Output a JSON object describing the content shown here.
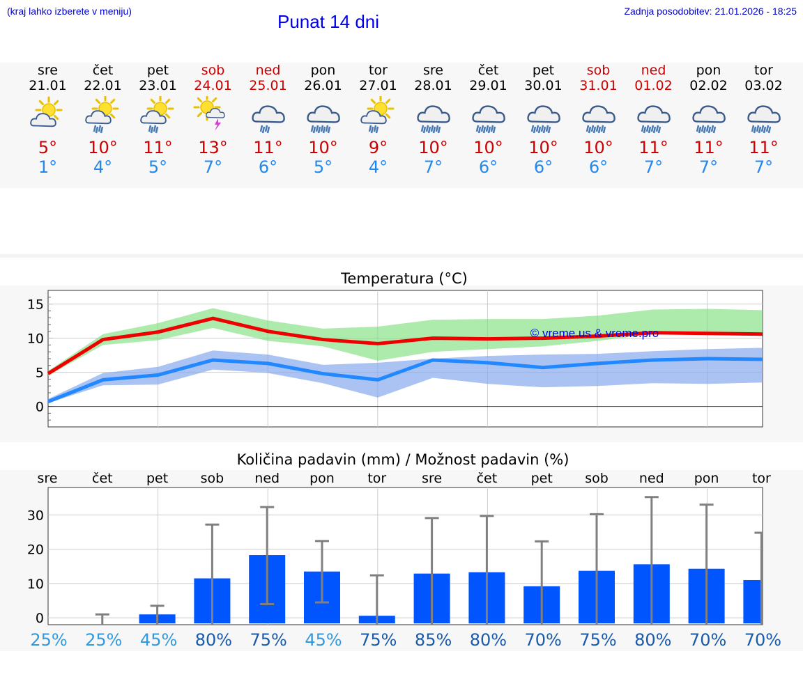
{
  "header": {
    "hint": "(kraj lahko izberete v meniju)",
    "title": "Punat 14 dni",
    "updated": "Zadnja posodobitev: 21.01.2026 - 18:25"
  },
  "days": [
    {
      "name": "sre",
      "date": "21.01",
      "weekend": false,
      "icon": "sun-cloud-icon",
      "tmax": "5°",
      "tmin": "1°"
    },
    {
      "name": "čet",
      "date": "22.01",
      "weekend": false,
      "icon": "sun-cloud-rain-icon",
      "tmax": "10°",
      "tmin": "4°"
    },
    {
      "name": "pet",
      "date": "23.01",
      "weekend": false,
      "icon": "sun-cloud-rain-icon",
      "tmax": "11°",
      "tmin": "5°"
    },
    {
      "name": "sob",
      "date": "24.01",
      "weekend": true,
      "icon": "sun-cloud-thunder-icon",
      "tmax": "13°",
      "tmin": "7°"
    },
    {
      "name": "ned",
      "date": "25.01",
      "weekend": true,
      "icon": "cloud-rain-icon",
      "tmax": "11°",
      "tmin": "6°"
    },
    {
      "name": "pon",
      "date": "26.01",
      "weekend": false,
      "icon": "cloud-heavy-rain-icon",
      "tmax": "10°",
      "tmin": "5°"
    },
    {
      "name": "tor",
      "date": "27.01",
      "weekend": false,
      "icon": "sun-cloud-rain-icon",
      "tmax": "9°",
      "tmin": "4°"
    },
    {
      "name": "sre",
      "date": "28.01",
      "weekend": false,
      "icon": "cloud-heavy-rain-icon",
      "tmax": "10°",
      "tmin": "7°"
    },
    {
      "name": "čet",
      "date": "29.01",
      "weekend": false,
      "icon": "cloud-heavy-rain-icon",
      "tmax": "10°",
      "tmin": "6°"
    },
    {
      "name": "pet",
      "date": "30.01",
      "weekend": false,
      "icon": "cloud-heavy-rain-icon",
      "tmax": "10°",
      "tmin": "6°"
    },
    {
      "name": "sob",
      "date": "31.01",
      "weekend": true,
      "icon": "cloud-heavy-rain-icon",
      "tmax": "10°",
      "tmin": "6°"
    },
    {
      "name": "ned",
      "date": "01.02",
      "weekend": true,
      "icon": "cloud-heavy-rain-icon",
      "tmax": "11°",
      "tmin": "7°"
    },
    {
      "name": "pon",
      "date": "02.02",
      "weekend": false,
      "icon": "cloud-heavy-rain-icon",
      "tmax": "11°",
      "tmin": "7°"
    },
    {
      "name": "tor",
      "date": "03.02",
      "weekend": false,
      "icon": "cloud-heavy-rain-icon",
      "tmax": "11°",
      "tmin": "7°"
    }
  ],
  "colors": {
    "max_line": "#ee0000",
    "max_band": "#77dd77",
    "min_line": "#2288ff",
    "min_band": "#88aaee",
    "bar": "#0055ff",
    "whisker": "#808080",
    "weekend": "#cc0000",
    "min_text": "#2288ee"
  },
  "chart_data": [
    {
      "type": "line",
      "title": "Temperatura (°C)",
      "watermark": "© vreme.us & vreme.pro",
      "ylim": [
        -3,
        17
      ],
      "yticks": [
        0,
        5,
        10,
        15
      ],
      "tick_labels": [
        "0",
        "5",
        "10",
        "15"
      ],
      "series": [
        {
          "name": "max",
          "values": [
            4.8,
            9.8,
            10.9,
            12.9,
            11.0,
            9.8,
            9.2,
            10.0,
            9.9,
            10.0,
            10.3,
            10.8,
            10.7,
            10.6
          ],
          "band_low": [
            4.5,
            9.0,
            9.7,
            11.5,
            9.6,
            8.8,
            6.7,
            8.0,
            8.4,
            8.8,
            9.6,
            10.6,
            10.6,
            10.7
          ],
          "band_high": [
            5.2,
            10.6,
            12.2,
            14.4,
            12.6,
            11.4,
            11.7,
            12.7,
            12.8,
            12.8,
            13.3,
            14.2,
            14.3,
            14.1
          ]
        },
        {
          "name": "min",
          "values": [
            0.7,
            3.9,
            4.6,
            6.8,
            6.3,
            4.8,
            3.9,
            6.8,
            6.4,
            5.7,
            6.3,
            6.8,
            7.0,
            6.9
          ],
          "band_low": [
            0.5,
            3.1,
            3.2,
            5.4,
            4.9,
            3.4,
            1.3,
            4.2,
            3.3,
            2.8,
            3.0,
            3.4,
            3.3,
            3.5
          ],
          "band_high": [
            1.1,
            4.9,
            5.8,
            8.2,
            7.6,
            6.1,
            6.4,
            7.0,
            7.4,
            7.6,
            7.7,
            8.1,
            8.4,
            8.6
          ]
        }
      ]
    },
    {
      "type": "bar",
      "title": "Količina padavin (mm) / Možnost padavin (%)",
      "categories": [
        "sre",
        "čet",
        "pet",
        "sob",
        "ned",
        "pon",
        "tor",
        "sre",
        "čet",
        "pet",
        "sob",
        "ned",
        "pon",
        "tor"
      ],
      "ylim": [
        -2,
        38
      ],
      "yticks": [
        0,
        10,
        20,
        30
      ],
      "tick_labels": [
        "0",
        "10",
        "20",
        "30"
      ],
      "values": [
        0,
        0,
        1,
        11.5,
        18.3,
        13.5,
        0.6,
        12.9,
        13.3,
        9.2,
        13.7,
        15.6,
        14.3,
        11
      ],
      "err_low": [
        null,
        null,
        null,
        null,
        4,
        4.5,
        null,
        null,
        null,
        null,
        null,
        null,
        null,
        null
      ],
      "err_high": [
        null,
        1,
        3.5,
        27.2,
        32.3,
        22.4,
        12.4,
        29.1,
        29.7,
        22.3,
        30.2,
        35.2,
        33,
        24.8
      ],
      "probability": [
        "25%",
        "25%",
        "45%",
        "80%",
        "75%",
        "45%",
        "75%",
        "85%",
        "80%",
        "70%",
        "75%",
        "80%",
        "70%",
        "70%"
      ]
    }
  ]
}
